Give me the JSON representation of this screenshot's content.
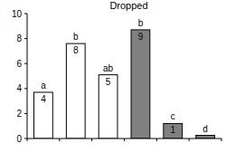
{
  "chart_data": {
    "type": "bar",
    "title": "Dropped",
    "categories": [
      null,
      null,
      null,
      null,
      null,
      null
    ],
    "values": [
      3.7,
      7.6,
      5.1,
      8.7,
      1.2,
      0.25
    ],
    "value_labels": [
      "4",
      "8",
      "5",
      "9",
      "1",
      null
    ],
    "annotations": [
      "a",
      "b",
      "ab",
      "b",
      "c",
      "d"
    ],
    "colors": [
      "#ffffff",
      "#ffffff",
      "#ffffff",
      "#808080",
      "#808080",
      "#808080"
    ],
    "ylim": [
      0,
      10
    ],
    "yticks": [
      0,
      2,
      4,
      6,
      8,
      10
    ],
    "data_labels": true,
    "tick_labels": "y",
    "grid": false
  }
}
